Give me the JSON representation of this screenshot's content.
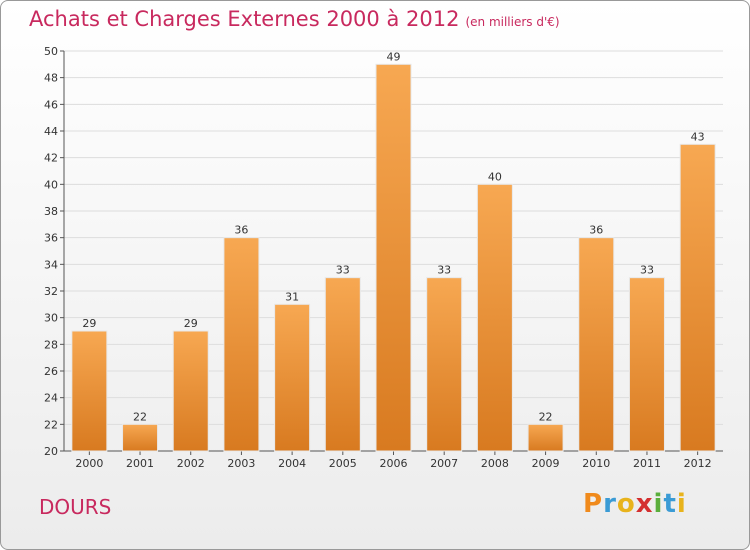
{
  "header": {
    "title": "Achats et Charges Externes 2000 à 2012",
    "subtitle": "(en milliers d'€)"
  },
  "footer": {
    "place": "DOURS",
    "logo_letters": [
      "P",
      "r",
      "o",
      "x",
      "i",
      "t",
      "i"
    ]
  },
  "colors": {
    "title": "#c8295e",
    "bar_top": "#f7a852",
    "bar_bottom": "#d87a20",
    "grid": "#dddddd",
    "logo": [
      "#f08a1c",
      "#3a9bd5",
      "#e8b31c",
      "#d42f2f",
      "#5aae3c",
      "#3a9bd5",
      "#e8b31c"
    ]
  },
  "chart_data": {
    "type": "bar",
    "title": "Achats et Charges Externes 2000 à 2012",
    "subtitle": "(en milliers d'€)",
    "categories": [
      "2000",
      "2001",
      "2002",
      "2003",
      "2004",
      "2005",
      "2006",
      "2007",
      "2008",
      "2009",
      "2010",
      "2011",
      "2012"
    ],
    "values": [
      29,
      22,
      29,
      36,
      31,
      33,
      49,
      33,
      40,
      22,
      36,
      33,
      43
    ],
    "ylim": [
      20,
      50
    ],
    "yticks": [
      20,
      22,
      24,
      26,
      28,
      30,
      32,
      34,
      36,
      38,
      40,
      42,
      44,
      46,
      48,
      50
    ],
    "grid": true,
    "xlabel": "",
    "ylabel": ""
  }
}
